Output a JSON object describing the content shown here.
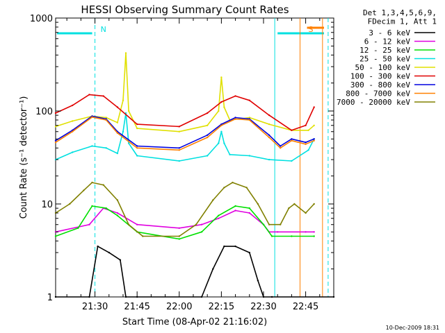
{
  "chart_data": {
    "type": "line",
    "title": "HESSI Observing Summary Count Rates",
    "xlabel": "Start Time (08-Apr-02 21:16:02)",
    "ylabel": "Count Rate (s⁻¹ detector⁻¹)",
    "x_unit": "UT (HH:MM)",
    "xlim": [
      "21:16",
      "22:55"
    ],
    "x_ticks": [
      "21:30",
      "21:45",
      "22:00",
      "22:15",
      "22:30",
      "22:45"
    ],
    "y_scale": "log",
    "ylim": [
      1,
      1000
    ],
    "y_ticks": [
      "1",
      "10",
      "100",
      "1000"
    ],
    "grid": false,
    "legend_placement": "right",
    "legend_header": [
      "Det 1,3,4,5,6,9,",
      "FDecim 1, Att 1"
    ],
    "series": [
      {
        "name": "3 - 6 keV",
        "color": "#000000",
        "x": [
          "21:16",
          "21:28",
          "21:31",
          "21:35",
          "21:39",
          "21:41",
          "21:45",
          "22:08",
          "22:12",
          "22:16",
          "22:20",
          "22:25",
          "22:28",
          "22:30",
          "22:33",
          "22:55"
        ],
        "y": [
          1.0,
          1.0,
          3.5,
          3.0,
          2.5,
          1.0,
          1.0,
          1.0,
          2.0,
          3.5,
          3.5,
          3.0,
          1.5,
          1.0,
          1.0,
          1.0
        ]
      },
      {
        "name": "6 - 12 keV",
        "color": "#e000e0",
        "x": [
          "21:16",
          "21:28",
          "21:33",
          "21:38",
          "21:45",
          "22:00",
          "22:08",
          "22:14",
          "22:20",
          "22:25",
          "22:30",
          "22:32",
          "22:35",
          "22:45",
          "22:48"
        ],
        "y": [
          5.0,
          6.0,
          9.0,
          8.0,
          6.0,
          5.5,
          6.0,
          7.0,
          8.5,
          8.0,
          6.0,
          5.0,
          5.0,
          5.0,
          5.0
        ]
      },
      {
        "name": "12 - 25 keV",
        "color": "#00e000",
        "x": [
          "21:16",
          "21:24",
          "21:29",
          "21:34",
          "21:38",
          "21:45",
          "22:00",
          "22:08",
          "22:14",
          "22:20",
          "22:25",
          "22:30",
          "22:33",
          "22:40",
          "22:48"
        ],
        "y": [
          4.5,
          5.5,
          9.5,
          9.0,
          7.5,
          5.0,
          4.2,
          5.0,
          7.5,
          9.5,
          9.0,
          6.0,
          4.5,
          4.5,
          4.5
        ]
      },
      {
        "name": "25 - 50 keV",
        "color": "#00e0e0",
        "x": [
          "21:16",
          "21:22",
          "21:29",
          "21:34",
          "21:38",
          "21:40",
          "21:41",
          "21:42",
          "21:45",
          "22:00",
          "22:10",
          "22:14",
          "22:15",
          "22:16",
          "22:18",
          "22:25",
          "22:32",
          "22:40",
          "22:46",
          "22:48"
        ],
        "y": [
          30,
          36,
          42,
          40,
          35,
          60,
          95,
          45,
          33,
          29,
          33,
          45,
          60,
          45,
          34,
          33,
          30,
          29,
          38,
          50
        ]
      },
      {
        "name": "50 - 100 keV",
        "color": "#e0e000",
        "x": [
          "21:16",
          "21:22",
          "21:29",
          "21:34",
          "21:38",
          "21:40",
          "21:41",
          "21:42",
          "21:45",
          "22:00",
          "22:10",
          "22:14",
          "22:15",
          "22:16",
          "22:18",
          "22:25",
          "22:32",
          "22:40",
          "22:46",
          "22:48"
        ],
        "y": [
          68,
          78,
          88,
          85,
          75,
          130,
          420,
          100,
          65,
          60,
          70,
          100,
          230,
          110,
          80,
          85,
          72,
          62,
          62,
          70
        ]
      },
      {
        "name": "100 - 300 keV",
        "color": "#e00000",
        "x": [
          "21:16",
          "21:22",
          "21:28",
          "21:33",
          "21:38",
          "21:45",
          "22:00",
          "22:10",
          "22:15",
          "22:20",
          "22:25",
          "22:32",
          "22:40",
          "22:45",
          "22:48"
        ],
        "y": [
          95,
          115,
          150,
          145,
          110,
          72,
          68,
          95,
          125,
          145,
          130,
          90,
          62,
          70,
          110
        ]
      },
      {
        "name": "300 - 800 keV",
        "color": "#0000e0",
        "x": [
          "21:16",
          "21:22",
          "21:29",
          "21:34",
          "21:38",
          "21:45",
          "22:00",
          "22:10",
          "22:15",
          "22:20",
          "22:25",
          "22:32",
          "22:36",
          "22:40",
          "22:45",
          "22:48"
        ],
        "y": [
          48,
          62,
          88,
          82,
          60,
          42,
          40,
          55,
          72,
          85,
          82,
          55,
          42,
          50,
          46,
          50
        ]
      },
      {
        "name": "800 - 7000 keV",
        "color": "#ff8000",
        "x": [
          "21:16",
          "21:22",
          "21:29",
          "21:34",
          "21:38",
          "21:45",
          "22:00",
          "22:10",
          "22:15",
          "22:20",
          "22:25",
          "22:32",
          "22:36",
          "22:40",
          "22:45",
          "22:48"
        ],
        "y": [
          46,
          60,
          86,
          80,
          58,
          40,
          38,
          52,
          70,
          82,
          80,
          52,
          40,
          48,
          44,
          48
        ]
      },
      {
        "name": "7000 - 20000 keV",
        "color": "#808000",
        "x": [
          "21:16",
          "21:21",
          "21:26",
          "21:29",
          "21:33",
          "21:38",
          "21:42",
          "21:47",
          "22:00",
          "22:06",
          "22:12",
          "22:16",
          "22:19",
          "22:24",
          "22:28",
          "22:32",
          "22:36",
          "22:39",
          "22:41",
          "22:45",
          "22:48"
        ],
        "y": [
          8,
          10,
          14,
          17,
          16,
          11,
          6,
          4.5,
          4.5,
          6,
          11,
          15,
          17,
          15,
          10,
          6,
          6,
          9,
          10,
          8,
          10
        ]
      }
    ],
    "annotations": [
      {
        "text": "N",
        "color": "#00e0e0",
        "x": "21:30"
      },
      {
        "text": "S",
        "color": "#ff8000",
        "x": "22:44"
      }
    ],
    "timestamp": "10-Dec-2009 18:31"
  }
}
